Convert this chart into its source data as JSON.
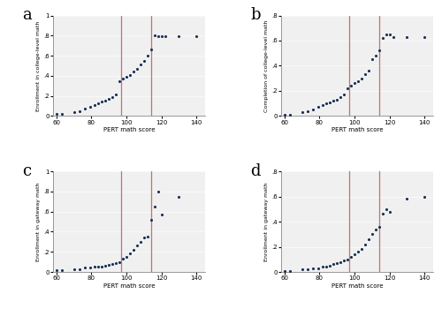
{
  "panels": [
    "a",
    "b",
    "c",
    "d"
  ],
  "xlim": [
    58,
    145
  ],
  "xticks": [
    60,
    80,
    100,
    120,
    140
  ],
  "xlabel": "PERT math score",
  "cut_scores": [
    97,
    114
  ],
  "cut_color": "#c87070",
  "dot_color": "#1a3055",
  "dot_size": 5,
  "bg_color": "#f5f5f5",
  "ylabels": [
    "Enrollment in college-level math",
    "Completion of college-level math",
    "Enrollment in gateway math",
    "Enrollment in gateway math"
  ],
  "panel_a": {
    "x": [
      60,
      63,
      70,
      73,
      76,
      79,
      82,
      84,
      86,
      88,
      90,
      92,
      94,
      96,
      98,
      100,
      102,
      104,
      106,
      108,
      110,
      112,
      114,
      116,
      118,
      120,
      122,
      130,
      140
    ],
    "y": [
      0.02,
      0.02,
      0.04,
      0.05,
      0.07,
      0.09,
      0.11,
      0.13,
      0.14,
      0.15,
      0.17,
      0.19,
      0.21,
      0.35,
      0.37,
      0.39,
      0.41,
      0.44,
      0.47,
      0.51,
      0.55,
      0.6,
      0.66,
      0.8,
      0.79,
      0.79,
      0.79,
      0.79,
      0.79
    ],
    "ylim": [
      0,
      1.0
    ],
    "yticks": [
      0,
      0.2,
      0.4,
      0.6,
      0.8,
      1.0
    ],
    "ytick_labels": [
      "0",
      ".2",
      ".4",
      ".6",
      ".8",
      "1"
    ]
  },
  "panel_b": {
    "x": [
      60,
      63,
      70,
      73,
      76,
      79,
      82,
      84,
      86,
      88,
      90,
      92,
      94,
      96,
      98,
      100,
      102,
      104,
      106,
      108,
      110,
      112,
      114,
      116,
      118,
      120,
      122,
      130,
      140
    ],
    "y": [
      0.01,
      0.01,
      0.03,
      0.04,
      0.05,
      0.07,
      0.09,
      0.1,
      0.11,
      0.12,
      0.13,
      0.15,
      0.17,
      0.22,
      0.24,
      0.26,
      0.28,
      0.3,
      0.33,
      0.36,
      0.45,
      0.48,
      0.52,
      0.62,
      0.65,
      0.65,
      0.63,
      0.63,
      0.63
    ],
    "ylim": [
      0,
      0.8
    ],
    "yticks": [
      0,
      0.2,
      0.4,
      0.6,
      0.8
    ],
    "ytick_labels": [
      "0",
      ".2",
      ".4",
      ".6",
      ".8"
    ]
  },
  "panel_c": {
    "x": [
      60,
      63,
      70,
      73,
      76,
      79,
      82,
      84,
      86,
      88,
      90,
      92,
      94,
      96,
      98,
      100,
      102,
      104,
      106,
      108,
      110,
      112,
      114,
      116,
      118,
      120,
      130
    ],
    "y": [
      0.02,
      0.02,
      0.03,
      0.03,
      0.04,
      0.04,
      0.05,
      0.05,
      0.05,
      0.06,
      0.07,
      0.08,
      0.09,
      0.1,
      0.13,
      0.15,
      0.18,
      0.22,
      0.26,
      0.3,
      0.34,
      0.35,
      0.52,
      0.65,
      0.8,
      0.57,
      0.75
    ],
    "ylim": [
      0,
      1.0
    ],
    "yticks": [
      0,
      0.2,
      0.4,
      0.6,
      0.8,
      1.0
    ],
    "ytick_labels": [
      "0",
      ".2",
      ".4",
      ".6",
      ".8",
      "1"
    ]
  },
  "panel_d": {
    "x": [
      60,
      63,
      70,
      73,
      76,
      79,
      82,
      84,
      86,
      88,
      90,
      92,
      94,
      96,
      98,
      100,
      102,
      104,
      106,
      108,
      110,
      112,
      114,
      116,
      118,
      120,
      130,
      140
    ],
    "y": [
      0.01,
      0.01,
      0.02,
      0.02,
      0.03,
      0.03,
      0.04,
      0.04,
      0.05,
      0.06,
      0.07,
      0.08,
      0.09,
      0.1,
      0.12,
      0.14,
      0.16,
      0.18,
      0.22,
      0.26,
      0.3,
      0.34,
      0.36,
      0.46,
      0.5,
      0.48,
      0.58,
      0.6
    ],
    "ylim": [
      0,
      0.8
    ],
    "yticks": [
      0,
      0.2,
      0.4,
      0.6,
      0.8
    ],
    "ytick_labels": [
      "0",
      ".2",
      ".4",
      ".6",
      ".8"
    ]
  }
}
